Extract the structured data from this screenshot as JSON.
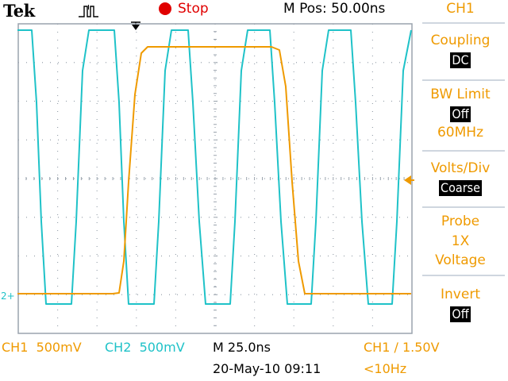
{
  "header": {
    "brand": "Tek",
    "status": "Stop",
    "horizontal_position": "M Pos: 50.00ns"
  },
  "ch2_marker": "2+",
  "menu": {
    "channel": "CH1",
    "items": [
      {
        "title": "Coupling",
        "values": [
          "DC"
        ]
      },
      {
        "title": "BW Limit",
        "values": [
          "Off"
        ],
        "subtitle": "60MHz"
      },
      {
        "title": "Volts/Div",
        "values": [
          "Coarse"
        ]
      },
      {
        "title": "Probe",
        "lines": [
          "1X",
          "Voltage"
        ]
      },
      {
        "title": "Invert",
        "values": [
          "Off"
        ]
      }
    ]
  },
  "footer": {
    "ch1_label": "CH1",
    "ch1_scale": "500mV",
    "ch2_label": "CH2",
    "ch2_scale": "500mV",
    "timebase": "M 25.0ns",
    "datetime": "20-May-10 09:11",
    "trigger": "CH1 ∕ 1.50V",
    "trigger_freq": "<10Hz"
  },
  "colors": {
    "ch1": "#ef9a00",
    "ch2": "#1fc2c8",
    "stop": "#e00000",
    "grid": "#9aa3ad"
  },
  "icons": {
    "acquire_mode": "pulse-peak-detect-icon",
    "trigger_position": "trigger-arrow-icon",
    "ch1_level": "left-pointing-arrow-icon"
  }
}
